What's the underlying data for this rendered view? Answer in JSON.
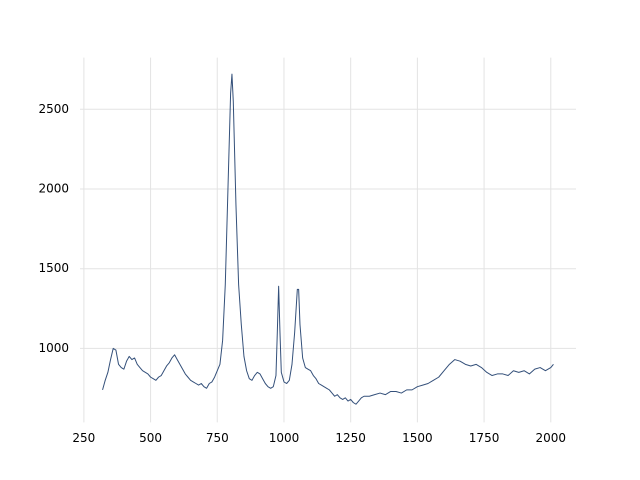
{
  "chart_data": {
    "type": "line",
    "x": [
      320,
      330,
      340,
      350,
      360,
      370,
      380,
      390,
      400,
      410,
      420,
      430,
      440,
      450,
      460,
      470,
      480,
      490,
      500,
      510,
      520,
      530,
      540,
      550,
      560,
      570,
      580,
      590,
      600,
      610,
      620,
      630,
      640,
      650,
      660,
      670,
      680,
      690,
      700,
      710,
      720,
      730,
      740,
      750,
      760,
      770,
      780,
      790,
      800,
      805,
      810,
      820,
      830,
      840,
      850,
      860,
      870,
      880,
      890,
      900,
      910,
      920,
      930,
      940,
      950,
      960,
      970,
      975,
      980,
      985,
      990,
      1000,
      1010,
      1020,
      1030,
      1040,
      1050,
      1055,
      1060,
      1070,
      1080,
      1090,
      1100,
      1110,
      1120,
      1130,
      1140,
      1150,
      1160,
      1170,
      1180,
      1190,
      1200,
      1210,
      1220,
      1230,
      1240,
      1250,
      1260,
      1270,
      1280,
      1290,
      1300,
      1320,
      1340,
      1360,
      1380,
      1400,
      1420,
      1440,
      1460,
      1480,
      1500,
      1520,
      1540,
      1560,
      1580,
      1600,
      1620,
      1640,
      1660,
      1680,
      1700,
      1720,
      1740,
      1760,
      1780,
      1800,
      1820,
      1840,
      1860,
      1880,
      1900,
      1920,
      1940,
      1960,
      1980,
      2000,
      2010
    ],
    "series": [
      {
        "color": "#34507a",
        "values": [
          740,
          800,
          850,
          930,
          1000,
          990,
          900,
          880,
          870,
          920,
          950,
          930,
          940,
          900,
          880,
          860,
          850,
          840,
          820,
          810,
          800,
          820,
          830,
          860,
          890,
          910,
          940,
          960,
          930,
          900,
          870,
          840,
          820,
          800,
          790,
          780,
          770,
          780,
          760,
          750,
          780,
          790,
          820,
          860,
          900,
          1050,
          1400,
          2000,
          2600,
          2720,
          2550,
          1900,
          1400,
          1150,
          950,
          860,
          810,
          800,
          830,
          850,
          840,
          810,
          780,
          760,
          750,
          760,
          830,
          1100,
          1390,
          1100,
          850,
          790,
          780,
          800,
          900,
          1100,
          1370,
          1370,
          1150,
          940,
          880,
          870,
          860,
          830,
          810,
          780,
          770,
          760,
          750,
          740,
          720,
          700,
          710,
          690,
          680,
          690,
          670,
          680,
          660,
          650,
          670,
          690,
          700,
          700,
          710,
          720,
          710,
          730,
          730,
          720,
          740,
          740,
          760,
          770,
          780,
          800,
          820,
          860,
          900,
          930,
          920,
          900,
          890,
          900,
          880,
          850,
          830,
          840,
          840,
          830,
          860,
          850,
          860,
          840,
          870,
          880,
          860,
          880,
          900
        ]
      }
    ],
    "xlim": [
      235.5,
      2094.5
    ],
    "ylim": [
      536,
      2824
    ],
    "xticks": [
      250,
      500,
      750,
      1000,
      1250,
      1500,
      1750,
      2000
    ],
    "yticks": [
      1000,
      1500,
      2000,
      2500
    ],
    "grid": true
  }
}
